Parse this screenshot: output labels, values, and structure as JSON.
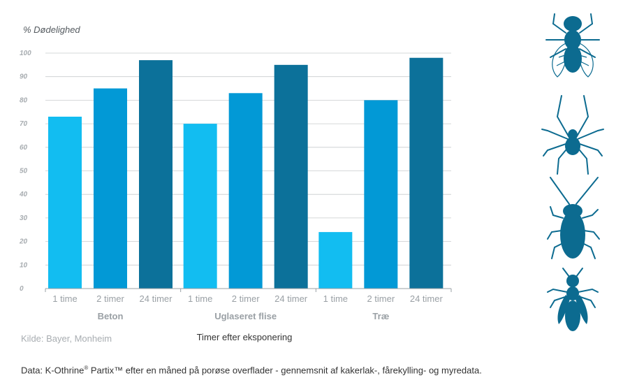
{
  "chart_data": {
    "type": "bar",
    "ylabel": "% Dødelighed",
    "xlabel": "Timer efter eksponering",
    "ylim": [
      0,
      100
    ],
    "yticks": [
      "0",
      "10",
      "20",
      "30",
      "40",
      "50",
      "60",
      "70",
      "80",
      "90",
      "100"
    ],
    "grid": true,
    "groups": [
      {
        "name": "Beton",
        "bars": [
          {
            "label": "1 time",
            "value": 73
          },
          {
            "label": "2 timer",
            "value": 85
          },
          {
            "label": "24 timer",
            "value": 97
          }
        ]
      },
      {
        "name": "Uglaseret flise",
        "bars": [
          {
            "label": "1 time",
            "value": 70
          },
          {
            "label": "2 timer",
            "value": 83
          },
          {
            "label": "24 timer",
            "value": 95
          }
        ]
      },
      {
        "name": "Træ",
        "bars": [
          {
            "label": "1 time",
            "value": 24
          },
          {
            "label": "2 timer",
            "value": 80
          },
          {
            "label": "24 timer",
            "value": 98
          }
        ]
      }
    ],
    "colors": [
      "#12bdf1",
      "#0299d6",
      "#0c719a"
    ],
    "source": "Kilde: Bayer, Monheim"
  },
  "footnote": {
    "prefix": "Data: K-Othrine",
    "reg": "®",
    "suffix": " Partix™ efter en måned på porøse overflader - gennemsnit af kakerlak-, fårekylling- og myredata."
  },
  "icons": {
    "color": "#0c6b90",
    "names": [
      "fly-icon",
      "spider-icon",
      "cockroach-icon",
      "ant-icon"
    ]
  }
}
